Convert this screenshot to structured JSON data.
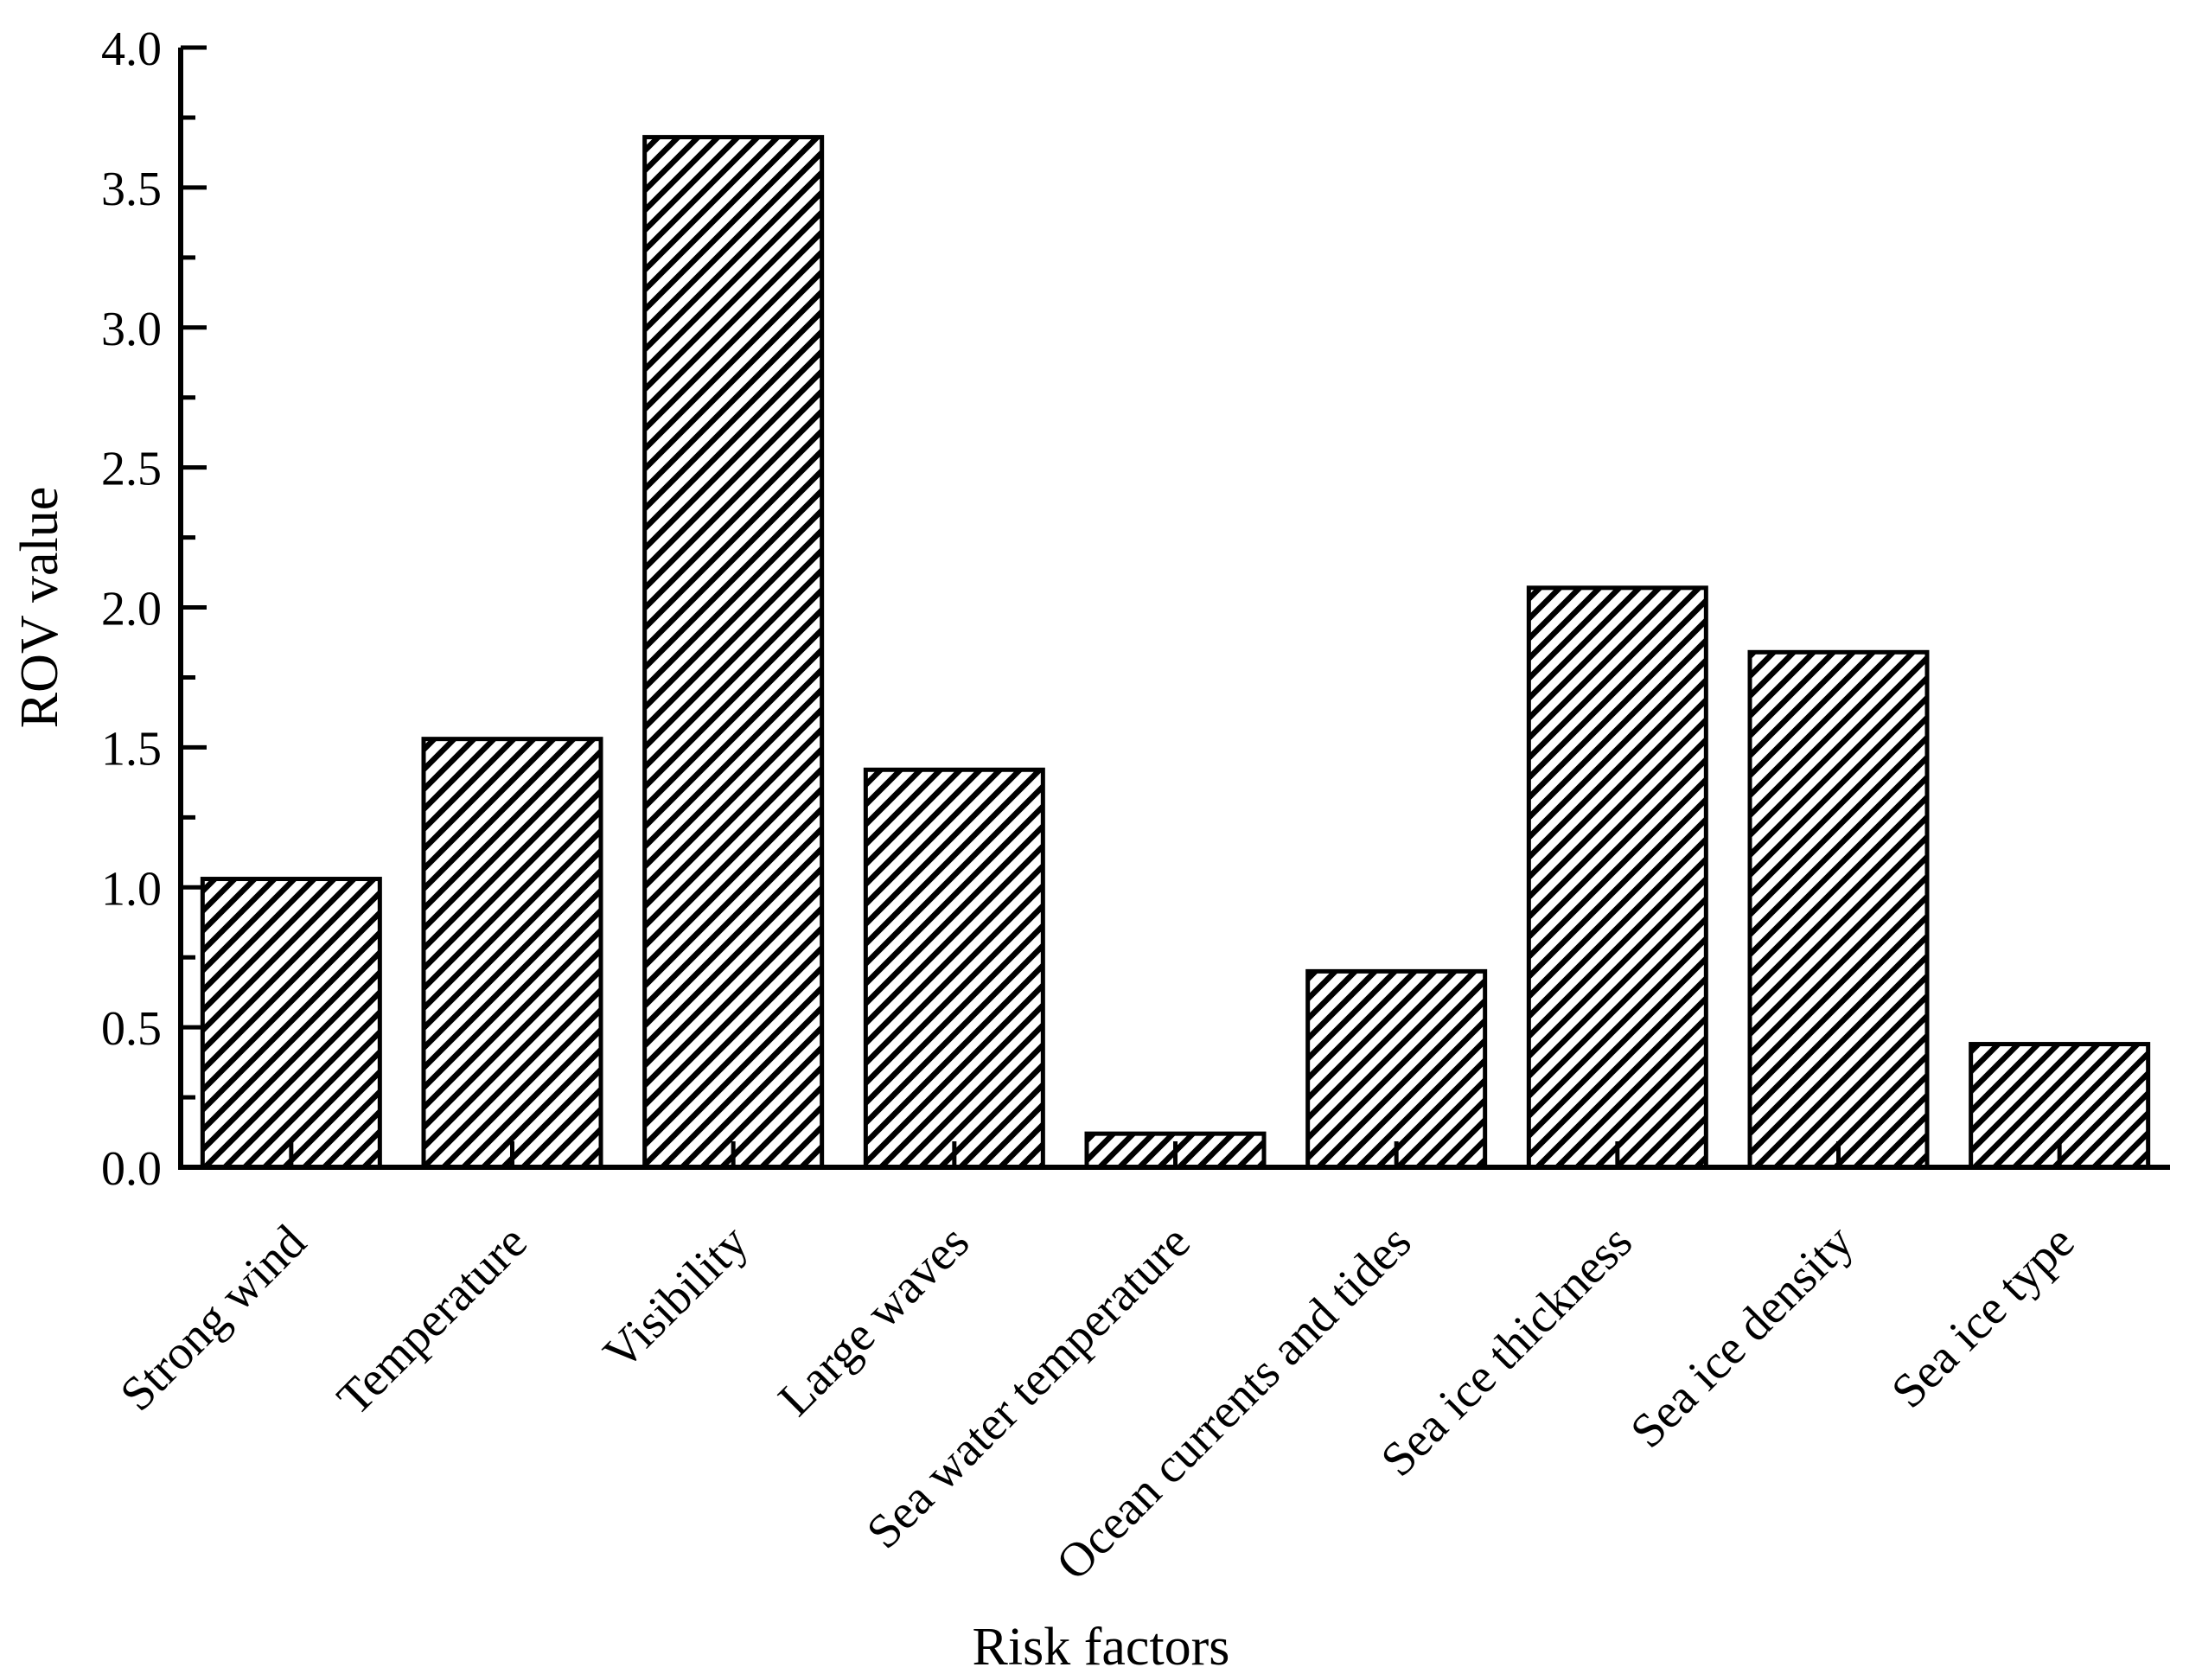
{
  "figure": {
    "background_color": "#ffffff",
    "ink_color": "#000000"
  },
  "chart_data": {
    "type": "bar",
    "title": "",
    "xlabel": "Risk factors",
    "ylabel": "ROV value",
    "categories": [
      "Strong wind",
      "Temperature",
      "Visibility",
      "Large waves",
      "Sea water temperature",
      "Ocean currents and tides",
      "Sea ice thickness",
      "Sea ice density",
      "Sea ice type"
    ],
    "values": [
      1.03,
      1.53,
      3.68,
      1.42,
      0.12,
      0.7,
      2.07,
      1.84,
      0.44
    ],
    "ylim": [
      0,
      4.0
    ],
    "ytick_step": 0.5,
    "yminor_step": 0.25,
    "ytick_labels": [
      "0.0",
      "0.5",
      "1.0",
      "1.5",
      "2.0",
      "2.5",
      "3.0",
      "3.5",
      "4.0"
    ],
    "grid": false,
    "legend": null,
    "xtick_label_rotation_deg": 45,
    "bar_style": {
      "fill": "hatch-diagonal-forward",
      "hatch_color": "#000000",
      "bar_background": "#ffffff",
      "edge_color": "#000000"
    }
  }
}
